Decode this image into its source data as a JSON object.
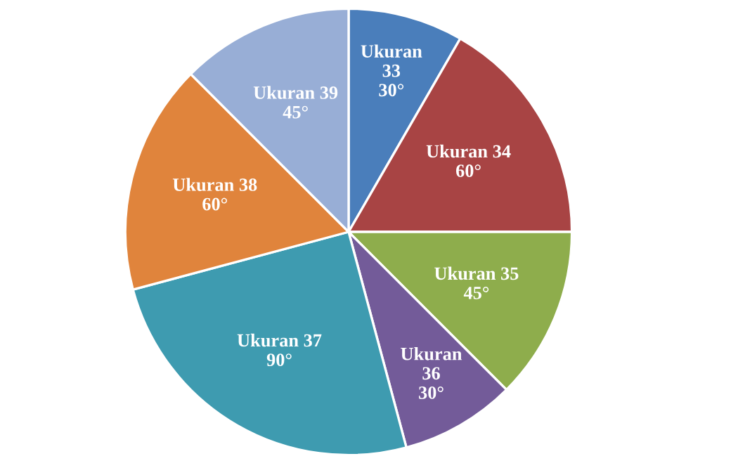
{
  "chart_data": {
    "type": "pie",
    "categories": [
      "Ukuran 33",
      "Ukuran 34",
      "Ukuran 35",
      "Ukuran 36",
      "Ukuran 37",
      "Ukuran 38",
      "Ukuran 39"
    ],
    "values": [
      30,
      60,
      45,
      30,
      90,
      60,
      45
    ],
    "value_labels": [
      "30°",
      "60°",
      "45°",
      "30°",
      "90°",
      "60°",
      "45°"
    ],
    "colors": [
      "#4a7ebb",
      "#a84444",
      "#8ead4c",
      "#735b99",
      "#3e9bb0",
      "#e0843c",
      "#98aed6"
    ],
    "legend": false
  }
}
